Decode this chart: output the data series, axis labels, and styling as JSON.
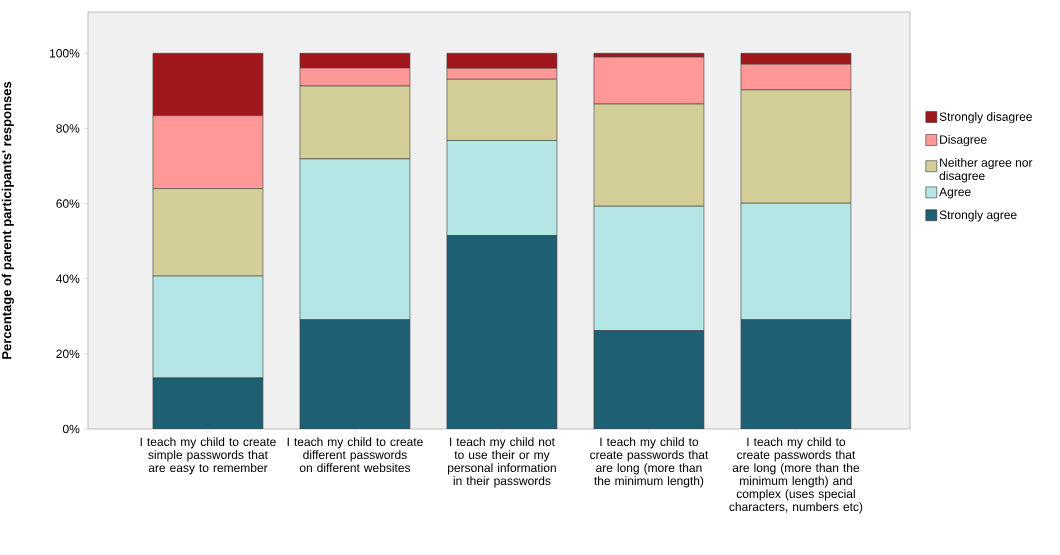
{
  "chart_data": {
    "type": "bar",
    "stacked": true,
    "ylabel": "Percentage of parent participants' responses",
    "categories": [
      "I teach my child to create simple passwords that are easy to remember",
      "I teach my child to create different passwords on different websites",
      "I teach my child not to use their or my personal information in their passwords",
      "I teach my child to create passwords that are long (more than the minimum length)",
      "I teach my child to create passwords that are long (more than the minimum length) and complex (uses special characters, numbers etc)"
    ],
    "series": [
      {
        "name": "Strongly agree",
        "color": "#1e5f74",
        "values": [
          13.6,
          29.1,
          51.5,
          26.2,
          29.1
        ]
      },
      {
        "name": "Agree",
        "color": "#b4e6e6",
        "values": [
          27.1,
          42.8,
          25.3,
          33.1,
          31.0
        ]
      },
      {
        "name": "Neither agree nor disagree",
        "color": "#d3ce97",
        "values": [
          23.3,
          19.4,
          16.3,
          27.2,
          30.2
        ]
      },
      {
        "name": "Disagree",
        "color": "#ff9896",
        "values": [
          19.4,
          4.8,
          2.9,
          12.5,
          6.8
        ]
      },
      {
        "name": "Strongly disagree",
        "color": "#a0171c",
        "values": [
          16.6,
          3.9,
          4.0,
          1.0,
          2.9
        ]
      }
    ],
    "ylim": [
      0,
      111
    ],
    "yticks": [
      {
        "value": 0,
        "label": "0%"
      },
      {
        "value": 20,
        "label": "20%"
      },
      {
        "value": 40,
        "label": "40%"
      },
      {
        "value": 60,
        "label": "60%"
      },
      {
        "value": 80,
        "label": "80%"
      },
      {
        "value": 100,
        "label": "100%"
      }
    ],
    "grid": false,
    "legend": "right"
  }
}
